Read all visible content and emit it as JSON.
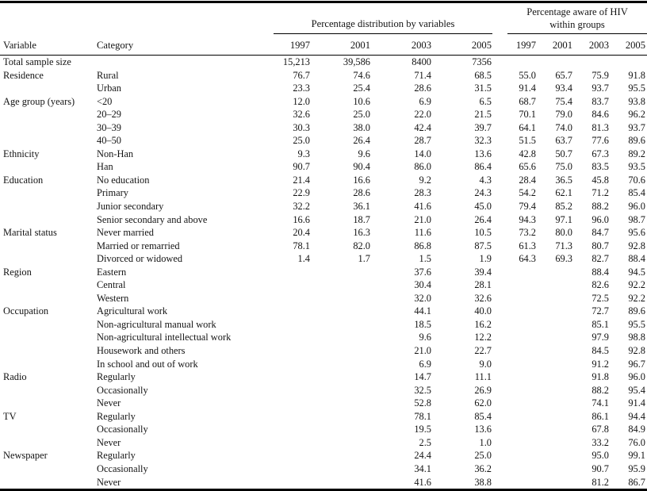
{
  "colors": {
    "text": "#141414",
    "rule": "#000000",
    "background": "#ffffff"
  },
  "table": {
    "header": {
      "variable_label": "Variable",
      "category_label": "Category",
      "group_distribution_title": "Percentage distribution by variables",
      "group_aware_title_line1": "Percentage aware of HIV",
      "group_aware_title_line2": "within groups",
      "distribution_years": [
        "1997",
        "2001",
        "2003",
        "2005"
      ],
      "aware_years": [
        "1997",
        "2001",
        "2003",
        "2005"
      ]
    },
    "rows": [
      {
        "variable": "Total sample size",
        "category": "",
        "dist": [
          "15,213",
          "39,586",
          "8400",
          "7356"
        ],
        "aware": [
          "",
          "",
          "",
          ""
        ]
      },
      {
        "variable": "Residence",
        "category": "Rural",
        "dist": [
          "76.7",
          "74.6",
          "71.4",
          "68.5"
        ],
        "aware": [
          "55.0",
          "65.7",
          "75.9",
          "91.8"
        ]
      },
      {
        "variable": "",
        "category": "Urban",
        "dist": [
          "23.3",
          "25.4",
          "28.6",
          "31.5"
        ],
        "aware": [
          "91.4",
          "93.4",
          "93.7",
          "95.5"
        ]
      },
      {
        "variable": "Age group (years)",
        "category": "<20",
        "dist": [
          "12.0",
          "10.6",
          "6.9",
          "6.5"
        ],
        "aware": [
          "68.7",
          "75.4",
          "83.7",
          "93.8"
        ]
      },
      {
        "variable": "",
        "category": "20–29",
        "dist": [
          "32.6",
          "25.0",
          "22.0",
          "21.5"
        ],
        "aware": [
          "70.1",
          "79.0",
          "84.6",
          "96.2"
        ]
      },
      {
        "variable": "",
        "category": "30–39",
        "dist": [
          "30.3",
          "38.0",
          "42.4",
          "39.7"
        ],
        "aware": [
          "64.1",
          "74.0",
          "81.3",
          "93.7"
        ]
      },
      {
        "variable": "",
        "category": "40–50",
        "dist": [
          "25.0",
          "26.4",
          "28.7",
          "32.3"
        ],
        "aware": [
          "51.5",
          "63.7",
          "77.6",
          "89.6"
        ]
      },
      {
        "variable": "Ethnicity",
        "category": "Non-Han",
        "dist": [
          "9.3",
          "9.6",
          "14.0",
          "13.6"
        ],
        "aware": [
          "42.8",
          "50.7",
          "67.3",
          "89.2"
        ]
      },
      {
        "variable": "",
        "category": "Han",
        "dist": [
          "90.7",
          "90.4",
          "86.0",
          "86.4"
        ],
        "aware": [
          "65.6",
          "75.0",
          "83.5",
          "93.5"
        ]
      },
      {
        "variable": "Education",
        "category": "No education",
        "dist": [
          "21.4",
          "16.6",
          "9.2",
          "4.3"
        ],
        "aware": [
          "28.4",
          "36.5",
          "45.8",
          "70.6"
        ]
      },
      {
        "variable": "",
        "category": "Primary",
        "dist": [
          "22.9",
          "28.6",
          "28.3",
          "24.3"
        ],
        "aware": [
          "54.2",
          "62.1",
          "71.2",
          "85.4"
        ]
      },
      {
        "variable": "",
        "category": "Junior secondary",
        "dist": [
          "32.2",
          "36.1",
          "41.6",
          "45.0"
        ],
        "aware": [
          "79.4",
          "85.2",
          "88.2",
          "96.0"
        ]
      },
      {
        "variable": "",
        "category": "Senior secondary and above",
        "dist": [
          "16.6",
          "18.7",
          "21.0",
          "26.4"
        ],
        "aware": [
          "94.3",
          "97.1",
          "96.0",
          "98.7"
        ]
      },
      {
        "variable": "Marital status",
        "category": "Never married",
        "dist": [
          "20.4",
          "16.3",
          "11.6",
          "10.5"
        ],
        "aware": [
          "73.2",
          "80.0",
          "84.7",
          "95.6"
        ]
      },
      {
        "variable": "",
        "category": "Married or remarried",
        "dist": [
          "78.1",
          "82.0",
          "86.8",
          "87.5"
        ],
        "aware": [
          "61.3",
          "71.3",
          "80.7",
          "92.8"
        ]
      },
      {
        "variable": "",
        "category": "Divorced or widowed",
        "dist": [
          "1.4",
          "1.7",
          "1.5",
          "1.9"
        ],
        "aware": [
          "64.3",
          "69.3",
          "82.7",
          "88.4"
        ]
      },
      {
        "variable": "Region",
        "category": "Eastern",
        "dist": [
          "",
          "",
          "37.6",
          "39.4"
        ],
        "aware": [
          "",
          "",
          "88.4",
          "94.5"
        ]
      },
      {
        "variable": "",
        "category": "Central",
        "dist": [
          "",
          "",
          "30.4",
          "28.1"
        ],
        "aware": [
          "",
          "",
          "82.6",
          "92.2"
        ]
      },
      {
        "variable": "",
        "category": "Western",
        "dist": [
          "",
          "",
          "32.0",
          "32.6"
        ],
        "aware": [
          "",
          "",
          "72.5",
          "92.2"
        ]
      },
      {
        "variable": "Occupation",
        "category": "Agricultural work",
        "dist": [
          "",
          "",
          "44.1",
          "40.0"
        ],
        "aware": [
          "",
          "",
          "72.7",
          "89.6"
        ]
      },
      {
        "variable": "",
        "category": "Non-agricultural manual work",
        "dist": [
          "",
          "",
          "18.5",
          "16.2"
        ],
        "aware": [
          "",
          "",
          "85.1",
          "95.5"
        ]
      },
      {
        "variable": "",
        "category": "Non-agricultural intellectual work",
        "dist": [
          "",
          "",
          "9.6",
          "12.2"
        ],
        "aware": [
          "",
          "",
          "97.9",
          "98.8"
        ]
      },
      {
        "variable": "",
        "category": "Housework and others",
        "dist": [
          "",
          "",
          "21.0",
          "22.7"
        ],
        "aware": [
          "",
          "",
          "84.5",
          "92.8"
        ]
      },
      {
        "variable": "",
        "category": "In school and out of work",
        "dist": [
          "",
          "",
          "6.9",
          "9.0"
        ],
        "aware": [
          "",
          "",
          "91.2",
          "96.7"
        ]
      },
      {
        "variable": "Radio",
        "category": "Regularly",
        "dist": [
          "",
          "",
          "14.7",
          "11.1"
        ],
        "aware": [
          "",
          "",
          "91.8",
          "96.0"
        ]
      },
      {
        "variable": "",
        "category": "Occasionally",
        "dist": [
          "",
          "",
          "32.5",
          "26.9"
        ],
        "aware": [
          "",
          "",
          "88.2",
          "95.4"
        ]
      },
      {
        "variable": "",
        "category": "Never",
        "dist": [
          "",
          "",
          "52.8",
          "62.0"
        ],
        "aware": [
          "",
          "",
          "74.1",
          "91.4"
        ]
      },
      {
        "variable": "TV",
        "category": "Regularly",
        "dist": [
          "",
          "",
          "78.1",
          "85.4"
        ],
        "aware": [
          "",
          "",
          "86.1",
          "94.4"
        ]
      },
      {
        "variable": "",
        "category": "Occasionally",
        "dist": [
          "",
          "",
          "19.5",
          "13.6"
        ],
        "aware": [
          "",
          "",
          "67.8",
          "84.9"
        ]
      },
      {
        "variable": "",
        "category": "Never",
        "dist": [
          "",
          "",
          "2.5",
          "1.0"
        ],
        "aware": [
          "",
          "",
          "33.2",
          "76.0"
        ]
      },
      {
        "variable": "Newspaper",
        "category": "Regularly",
        "dist": [
          "",
          "",
          "24.4",
          "25.0"
        ],
        "aware": [
          "",
          "",
          "95.0",
          "99.1"
        ]
      },
      {
        "variable": "",
        "category": "Occasionally",
        "dist": [
          "",
          "",
          "34.1",
          "36.2"
        ],
        "aware": [
          "",
          "",
          "90.7",
          "95.9"
        ]
      },
      {
        "variable": "",
        "category": "Never",
        "dist": [
          "",
          "",
          "41.6",
          "38.8"
        ],
        "aware": [
          "",
          "",
          "81.2",
          "86.7"
        ]
      }
    ]
  }
}
